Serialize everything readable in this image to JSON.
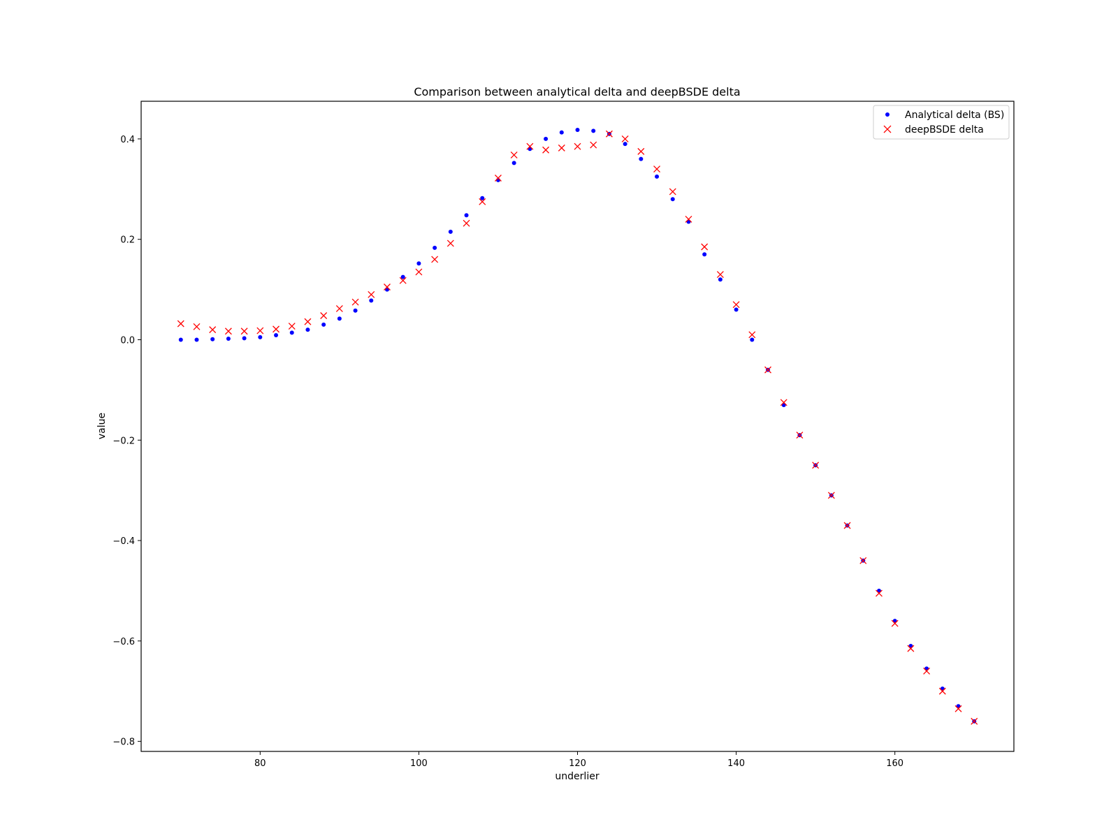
{
  "chart_data": {
    "type": "scatter",
    "title": "Comparison between analytical delta and deepBSDE delta",
    "xlabel": "underlier",
    "ylabel": "value",
    "xlim": [
      65,
      175
    ],
    "ylim": [
      -0.82,
      0.475
    ],
    "xticks": [
      80,
      100,
      120,
      140,
      160
    ],
    "yticks": [
      -0.8,
      -0.6,
      -0.4,
      -0.2,
      0.0,
      0.2,
      0.4
    ],
    "xtick_labels": [
      "80",
      "100",
      "120",
      "140",
      "160"
    ],
    "ytick_labels": [
      "−0.8",
      "−0.6",
      "−0.4",
      "−0.2",
      "0.0",
      "0.2",
      "0.4"
    ],
    "grid": false,
    "legend_position": "top-right",
    "colors": {
      "analytical": "#0000ff",
      "deepbsde": "#ff0000"
    },
    "series": [
      {
        "name": "Analytical delta (BS)",
        "marker": "dot",
        "x": [
          70,
          72,
          74,
          76,
          78,
          80,
          82,
          84,
          86,
          88,
          90,
          92,
          94,
          96,
          98,
          100,
          102,
          104,
          106,
          108,
          110,
          112,
          114,
          116,
          118,
          120,
          122,
          124,
          126,
          128,
          130,
          132,
          134,
          136,
          138,
          140,
          142,
          144,
          146,
          148,
          150,
          152,
          154,
          156,
          158,
          160,
          162,
          164,
          166,
          168,
          170
        ],
        "y": [
          0.0,
          0.0,
          0.001,
          0.002,
          0.003,
          0.005,
          0.009,
          0.014,
          0.02,
          0.03,
          0.042,
          0.058,
          0.078,
          0.1,
          0.125,
          0.152,
          0.183,
          0.215,
          0.248,
          0.282,
          0.318,
          0.352,
          0.38,
          0.4,
          0.413,
          0.418,
          0.416,
          0.41,
          0.39,
          0.36,
          0.325,
          0.28,
          0.235,
          0.17,
          0.12,
          0.06,
          0.0,
          -0.06,
          -0.13,
          -0.19,
          -0.25,
          -0.31,
          -0.37,
          -0.44,
          -0.5,
          -0.56,
          -0.61,
          -0.655,
          -0.695,
          -0.73,
          -0.76
        ]
      },
      {
        "name": "deepBSDE delta",
        "marker": "x",
        "x": [
          70,
          72,
          74,
          76,
          78,
          80,
          82,
          84,
          86,
          88,
          90,
          92,
          94,
          96,
          98,
          100,
          102,
          104,
          106,
          108,
          110,
          112,
          114,
          116,
          118,
          120,
          122,
          124,
          126,
          128,
          130,
          132,
          134,
          136,
          138,
          140,
          142,
          144,
          146,
          148,
          150,
          152,
          154,
          156,
          158,
          160,
          162,
          164,
          166,
          168,
          170
        ],
        "y": [
          0.032,
          0.026,
          0.02,
          0.017,
          0.017,
          0.018,
          0.021,
          0.027,
          0.036,
          0.048,
          0.062,
          0.075,
          0.09,
          0.105,
          0.118,
          0.135,
          0.16,
          0.192,
          0.232,
          0.275,
          0.322,
          0.368,
          0.385,
          0.378,
          0.382,
          0.385,
          0.388,
          0.41,
          0.4,
          0.375,
          0.34,
          0.295,
          0.24,
          0.185,
          0.13,
          0.07,
          0.01,
          -0.06,
          -0.125,
          -0.19,
          -0.25,
          -0.31,
          -0.37,
          -0.44,
          -0.505,
          -0.565,
          -0.615,
          -0.66,
          -0.7,
          -0.735,
          -0.76
        ]
      }
    ]
  }
}
